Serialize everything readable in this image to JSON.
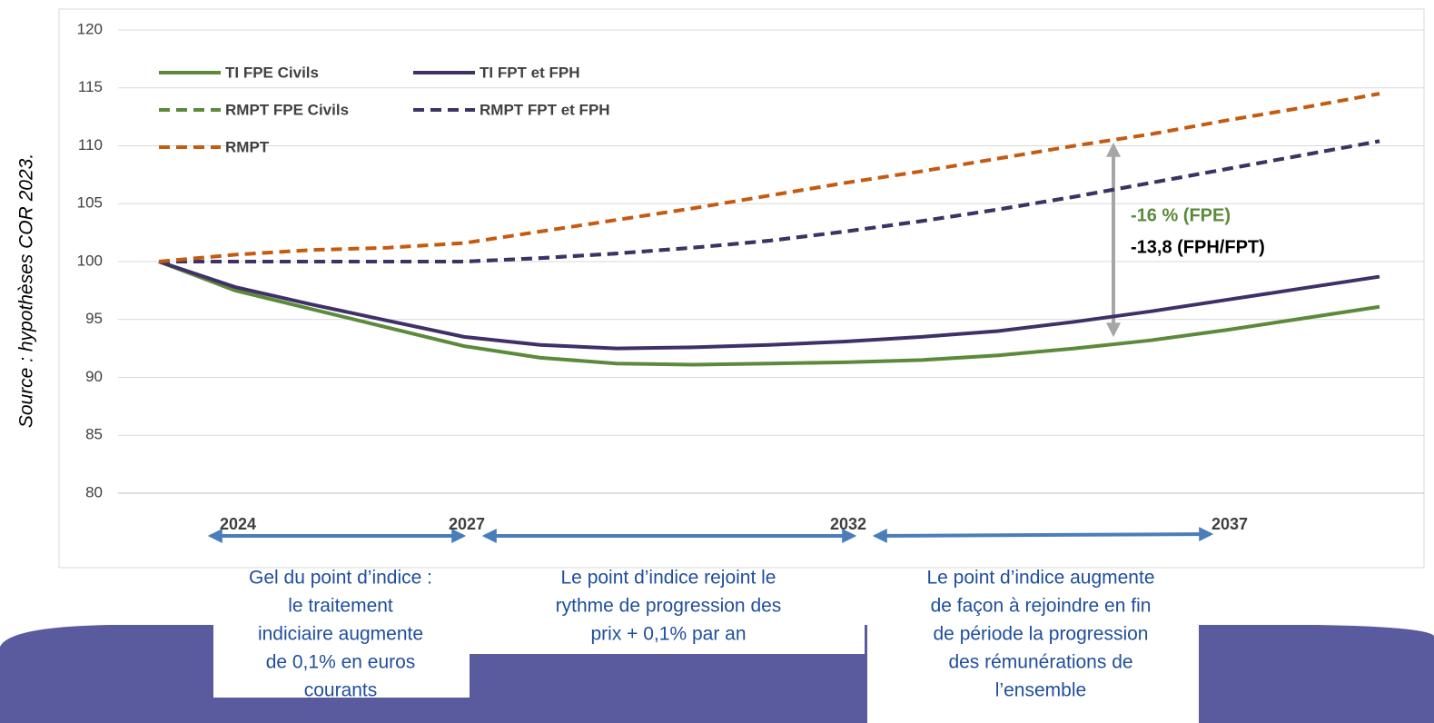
{
  "chart_data": {
    "type": "line",
    "source": "Source : hypothèses COR 2023.",
    "x": [
      2023,
      2024,
      2025,
      2026,
      2027,
      2028,
      2029,
      2030,
      2031,
      2032,
      2033,
      2034,
      2035,
      2036,
      2037,
      2038,
      2039
    ],
    "xlim": [
      2023,
      2039
    ],
    "xticks": [
      2024,
      2027,
      2032,
      2037
    ],
    "ylim": [
      80,
      120
    ],
    "yticks": [
      80,
      85,
      90,
      95,
      100,
      105,
      110,
      115,
      120
    ],
    "grid": true,
    "series": [
      {
        "name": "TI FPE Civils",
        "color": "#5b8a3a",
        "style": "solid",
        "values": [
          100,
          97.5,
          95.9,
          94.3,
          92.7,
          91.7,
          91.2,
          91.1,
          91.2,
          91.3,
          91.5,
          91.9,
          92.5,
          93.2,
          94.1,
          95.1,
          96.1
        ]
      },
      {
        "name": "TI FPT et FPH",
        "color": "#3f3168",
        "style": "solid",
        "values": [
          100,
          97.8,
          96.3,
          94.9,
          93.5,
          92.8,
          92.5,
          92.6,
          92.8,
          93.1,
          93.5,
          94.0,
          94.8,
          95.7,
          96.7,
          97.7,
          98.7
        ]
      },
      {
        "name": "RMPT FPE Civils",
        "color": "#5b8a3a",
        "style": "dashed",
        "values": [
          100,
          100,
          100,
          100,
          100,
          100.3,
          100.7,
          101.2,
          101.8,
          102.6,
          103.5,
          104.5,
          105.6,
          106.8,
          108,
          109.2,
          110.4
        ]
      },
      {
        "name": "RMPT FPT et FPH",
        "color": "#3f3168",
        "style": "dashed",
        "values": [
          100,
          100,
          100,
          100,
          100,
          100.3,
          100.7,
          101.2,
          101.8,
          102.6,
          103.5,
          104.5,
          105.6,
          106.8,
          108,
          109.2,
          110.4
        ]
      },
      {
        "name": "RMPT",
        "color": "#c55a11",
        "style": "dashed",
        "values": [
          100,
          100.6,
          101,
          101.2,
          101.6,
          102.6,
          103.6,
          104.6,
          105.7,
          106.8,
          107.8,
          108.9,
          110,
          111,
          112.2,
          113.3,
          114.5
        ]
      }
    ],
    "annotations": [
      {
        "text": "-16 % (FPE)",
        "color": "#5b8a3a"
      },
      {
        "text": "-13,8 (FPH/FPT)",
        "color": "#000000"
      }
    ],
    "periods": [
      {
        "lines": [
          "Gel du point d’indice :",
          "le traitement",
          "indiciaire augmente",
          "de 0,1% en euros",
          "courants"
        ]
      },
      {
        "lines": [
          "Le point d’indice rejoint le",
          "rythme de progression des",
          "prix + 0,1% par an"
        ]
      },
      {
        "lines": [
          "Le point d’indice augmente",
          "de façon à rejoindre en fin",
          "de période la progression",
          "des rémunérations de",
          "l’ensemble"
        ]
      }
    ]
  }
}
